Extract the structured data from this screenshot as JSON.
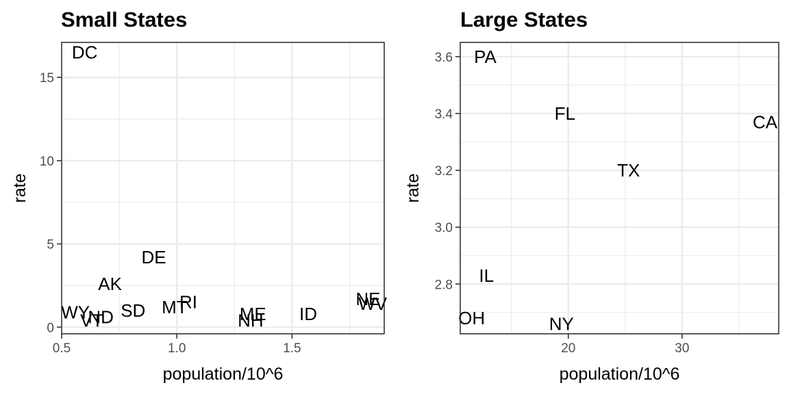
{
  "chart_data": [
    {
      "type": "scatter",
      "title": "Small States",
      "xlabel": "population/10^6",
      "ylabel": "rate",
      "xlim": [
        0.5,
        1.9
      ],
      "ylim": [
        -0.4,
        17.1
      ],
      "x_ticks": [
        0.5,
        1.0,
        1.5
      ],
      "x_tick_labels": [
        "0.5",
        "1.0",
        "1.5"
      ],
      "y_ticks": [
        0,
        5,
        10,
        15
      ],
      "y_tick_labels": [
        "0",
        "5",
        "10",
        "15"
      ],
      "grid": true,
      "points": [
        {
          "label": "DC",
          "x": 0.6,
          "y": 16.5
        },
        {
          "label": "DE",
          "x": 0.9,
          "y": 4.2
        },
        {
          "label": "AK",
          "x": 0.71,
          "y": 2.6
        },
        {
          "label": "WY",
          "x": 0.56,
          "y": 0.9
        },
        {
          "label": "VT",
          "x": 0.63,
          "y": 0.4
        },
        {
          "label": "ND",
          "x": 0.67,
          "y": 0.6
        },
        {
          "label": "SD",
          "x": 0.81,
          "y": 1.0
        },
        {
          "label": "MT",
          "x": 0.99,
          "y": 1.2
        },
        {
          "label": "RI",
          "x": 1.05,
          "y": 1.5
        },
        {
          "label": "ME",
          "x": 1.33,
          "y": 0.8
        },
        {
          "label": "NH",
          "x": 1.32,
          "y": 0.4
        },
        {
          "label": "ID",
          "x": 1.57,
          "y": 0.8
        },
        {
          "label": "NE",
          "x": 1.83,
          "y": 1.7
        },
        {
          "label": "WV",
          "x": 1.85,
          "y": 1.4
        }
      ]
    },
    {
      "type": "scatter",
      "title": "Large States",
      "xlabel": "population/10^6",
      "ylabel": "rate",
      "xlim": [
        10.5,
        38.5
      ],
      "ylim": [
        2.625,
        3.65
      ],
      "x_ticks": [
        20,
        30
      ],
      "x_tick_labels": [
        "20",
        "30"
      ],
      "y_ticks": [
        2.8,
        3.0,
        3.2,
        3.4,
        3.6
      ],
      "y_tick_labels": [
        "2.8",
        "3.0",
        "3.2",
        "3.4",
        "3.6"
      ],
      "grid": true,
      "points": [
        {
          "label": "PA",
          "x": 12.7,
          "y": 3.6
        },
        {
          "label": "FL",
          "x": 19.7,
          "y": 3.4
        },
        {
          "label": "CA",
          "x": 37.3,
          "y": 3.37
        },
        {
          "label": "TX",
          "x": 25.3,
          "y": 3.2
        },
        {
          "label": "IL",
          "x": 12.8,
          "y": 2.83
        },
        {
          "label": "OH",
          "x": 11.5,
          "y": 2.68
        },
        {
          "label": "NY",
          "x": 19.4,
          "y": 2.66
        }
      ]
    }
  ]
}
